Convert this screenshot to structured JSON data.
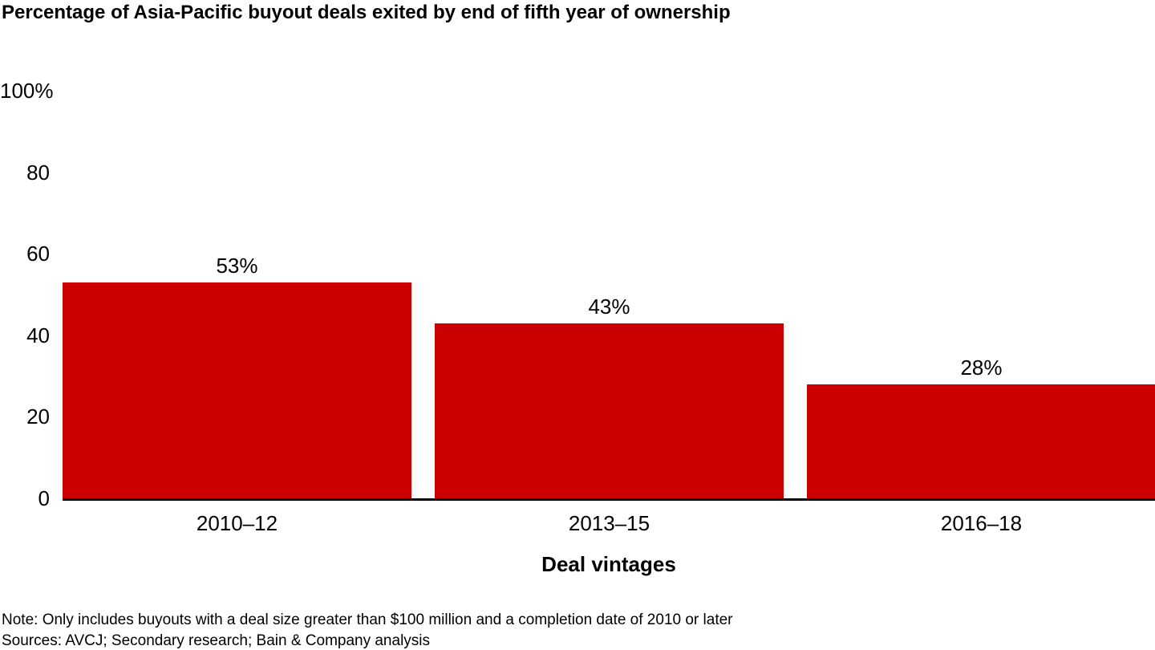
{
  "title": "Percentage of Asia-Pacific buyout deals exited by end of fifth year of ownership",
  "chart_data": {
    "type": "bar",
    "title": "Percentage of Asia-Pacific buyout deals exited by end of fifth year of ownership",
    "categories": [
      "2010–12",
      "2013–15",
      "2016–18"
    ],
    "values": [
      53,
      43,
      28
    ],
    "value_labels": [
      "53%",
      "43%",
      "28%"
    ],
    "xlabel": "Deal vintages",
    "ylabel": "",
    "ylim": [
      0,
      100
    ],
    "y_ticks": [
      {
        "value": 100,
        "label": "100%"
      },
      {
        "value": 80,
        "label": "80"
      },
      {
        "value": 60,
        "label": "60"
      },
      {
        "value": 40,
        "label": "40"
      },
      {
        "value": 20,
        "label": "20"
      },
      {
        "value": 0,
        "label": "0"
      }
    ],
    "grid": false,
    "legend": "none",
    "bar_color": "#cc0000",
    "axis_color": "#000000"
  },
  "footnotes": {
    "note": "Note: Only includes buyouts with a deal size greater than $100 million and a completion date of 2010 or later",
    "sources": "Sources: AVCJ; Secondary research; Bain & Company analysis"
  }
}
